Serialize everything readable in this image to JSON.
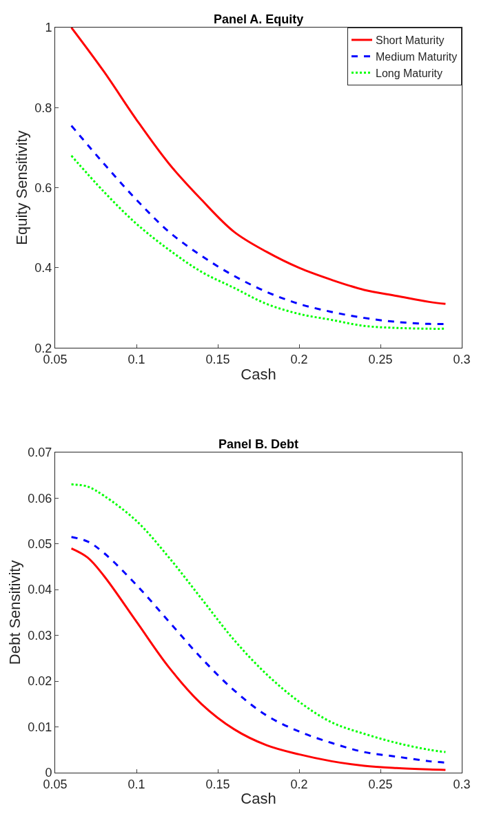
{
  "chart_data": [
    {
      "type": "line",
      "title": "Panel A. Equity",
      "xlabel": "Cash",
      "ylabel": "Equity Sensitivity",
      "x": [
        0.06,
        0.08,
        0.1,
        0.12,
        0.14,
        0.16,
        0.18,
        0.2,
        0.22,
        0.24,
        0.26,
        0.28,
        0.29
      ],
      "series": [
        {
          "name": "Short Maturity",
          "color": "#ff0000",
          "line_style": "solid",
          "values": [
            1.0,
            0.89,
            0.77,
            0.66,
            0.57,
            0.49,
            0.44,
            0.4,
            0.37,
            0.345,
            0.33,
            0.315,
            0.31
          ]
        },
        {
          "name": "Medium Maturity",
          "color": "#0000ff",
          "line_style": "dashed",
          "values": [
            0.755,
            0.66,
            0.57,
            0.49,
            0.43,
            0.38,
            0.34,
            0.31,
            0.29,
            0.275,
            0.265,
            0.26,
            0.26
          ]
        },
        {
          "name": "Long Maturity",
          "color": "#00ff00",
          "line_style": "dotted",
          "values": [
            0.68,
            0.59,
            0.51,
            0.445,
            0.39,
            0.35,
            0.31,
            0.285,
            0.27,
            0.255,
            0.25,
            0.248,
            0.248
          ]
        }
      ],
      "xlim": [
        0.05,
        0.3
      ],
      "xticks": [
        0.05,
        0.1,
        0.15,
        0.2,
        0.25,
        0.3
      ],
      "ylim": [
        0.2,
        1
      ],
      "yticks": [
        0.2,
        0.4,
        0.6,
        0.8,
        1
      ],
      "legend": "top right"
    },
    {
      "type": "line",
      "title": "Panel B. Debt",
      "xlabel": "Cash",
      "ylabel": "Debt Sensitivity",
      "x": [
        0.06,
        0.07,
        0.08,
        0.1,
        0.12,
        0.14,
        0.16,
        0.18,
        0.2,
        0.22,
        0.24,
        0.26,
        0.28,
        0.29
      ],
      "series": [
        {
          "color": "#ff0000",
          "line_style": "solid",
          "values": [
            0.049,
            0.047,
            0.043,
            0.033,
            0.023,
            0.015,
            0.0095,
            0.006,
            0.004,
            0.0025,
            0.0015,
            0.001,
            0.0007,
            0.0006
          ]
        },
        {
          "color": "#0000ff",
          "line_style": "dashed",
          "values": [
            0.0515,
            0.0505,
            0.048,
            0.041,
            0.033,
            0.025,
            0.018,
            0.0125,
            0.009,
            0.0065,
            0.0045,
            0.0035,
            0.0025,
            0.0022
          ]
        },
        {
          "color": "#00ff00",
          "line_style": "dotted",
          "values": [
            0.063,
            0.0625,
            0.0605,
            0.055,
            0.047,
            0.038,
            0.029,
            0.0215,
            0.0155,
            0.011,
            0.0085,
            0.0065,
            0.005,
            0.0045
          ]
        }
      ],
      "xlim": [
        0.05,
        0.3
      ],
      "xticks": [
        0.05,
        0.1,
        0.15,
        0.2,
        0.25,
        0.3
      ],
      "ylim": [
        0,
        0.07
      ],
      "yticks": [
        0,
        0.01,
        0.02,
        0.03,
        0.04,
        0.05,
        0.06,
        0.07
      ],
      "legend": false
    }
  ]
}
